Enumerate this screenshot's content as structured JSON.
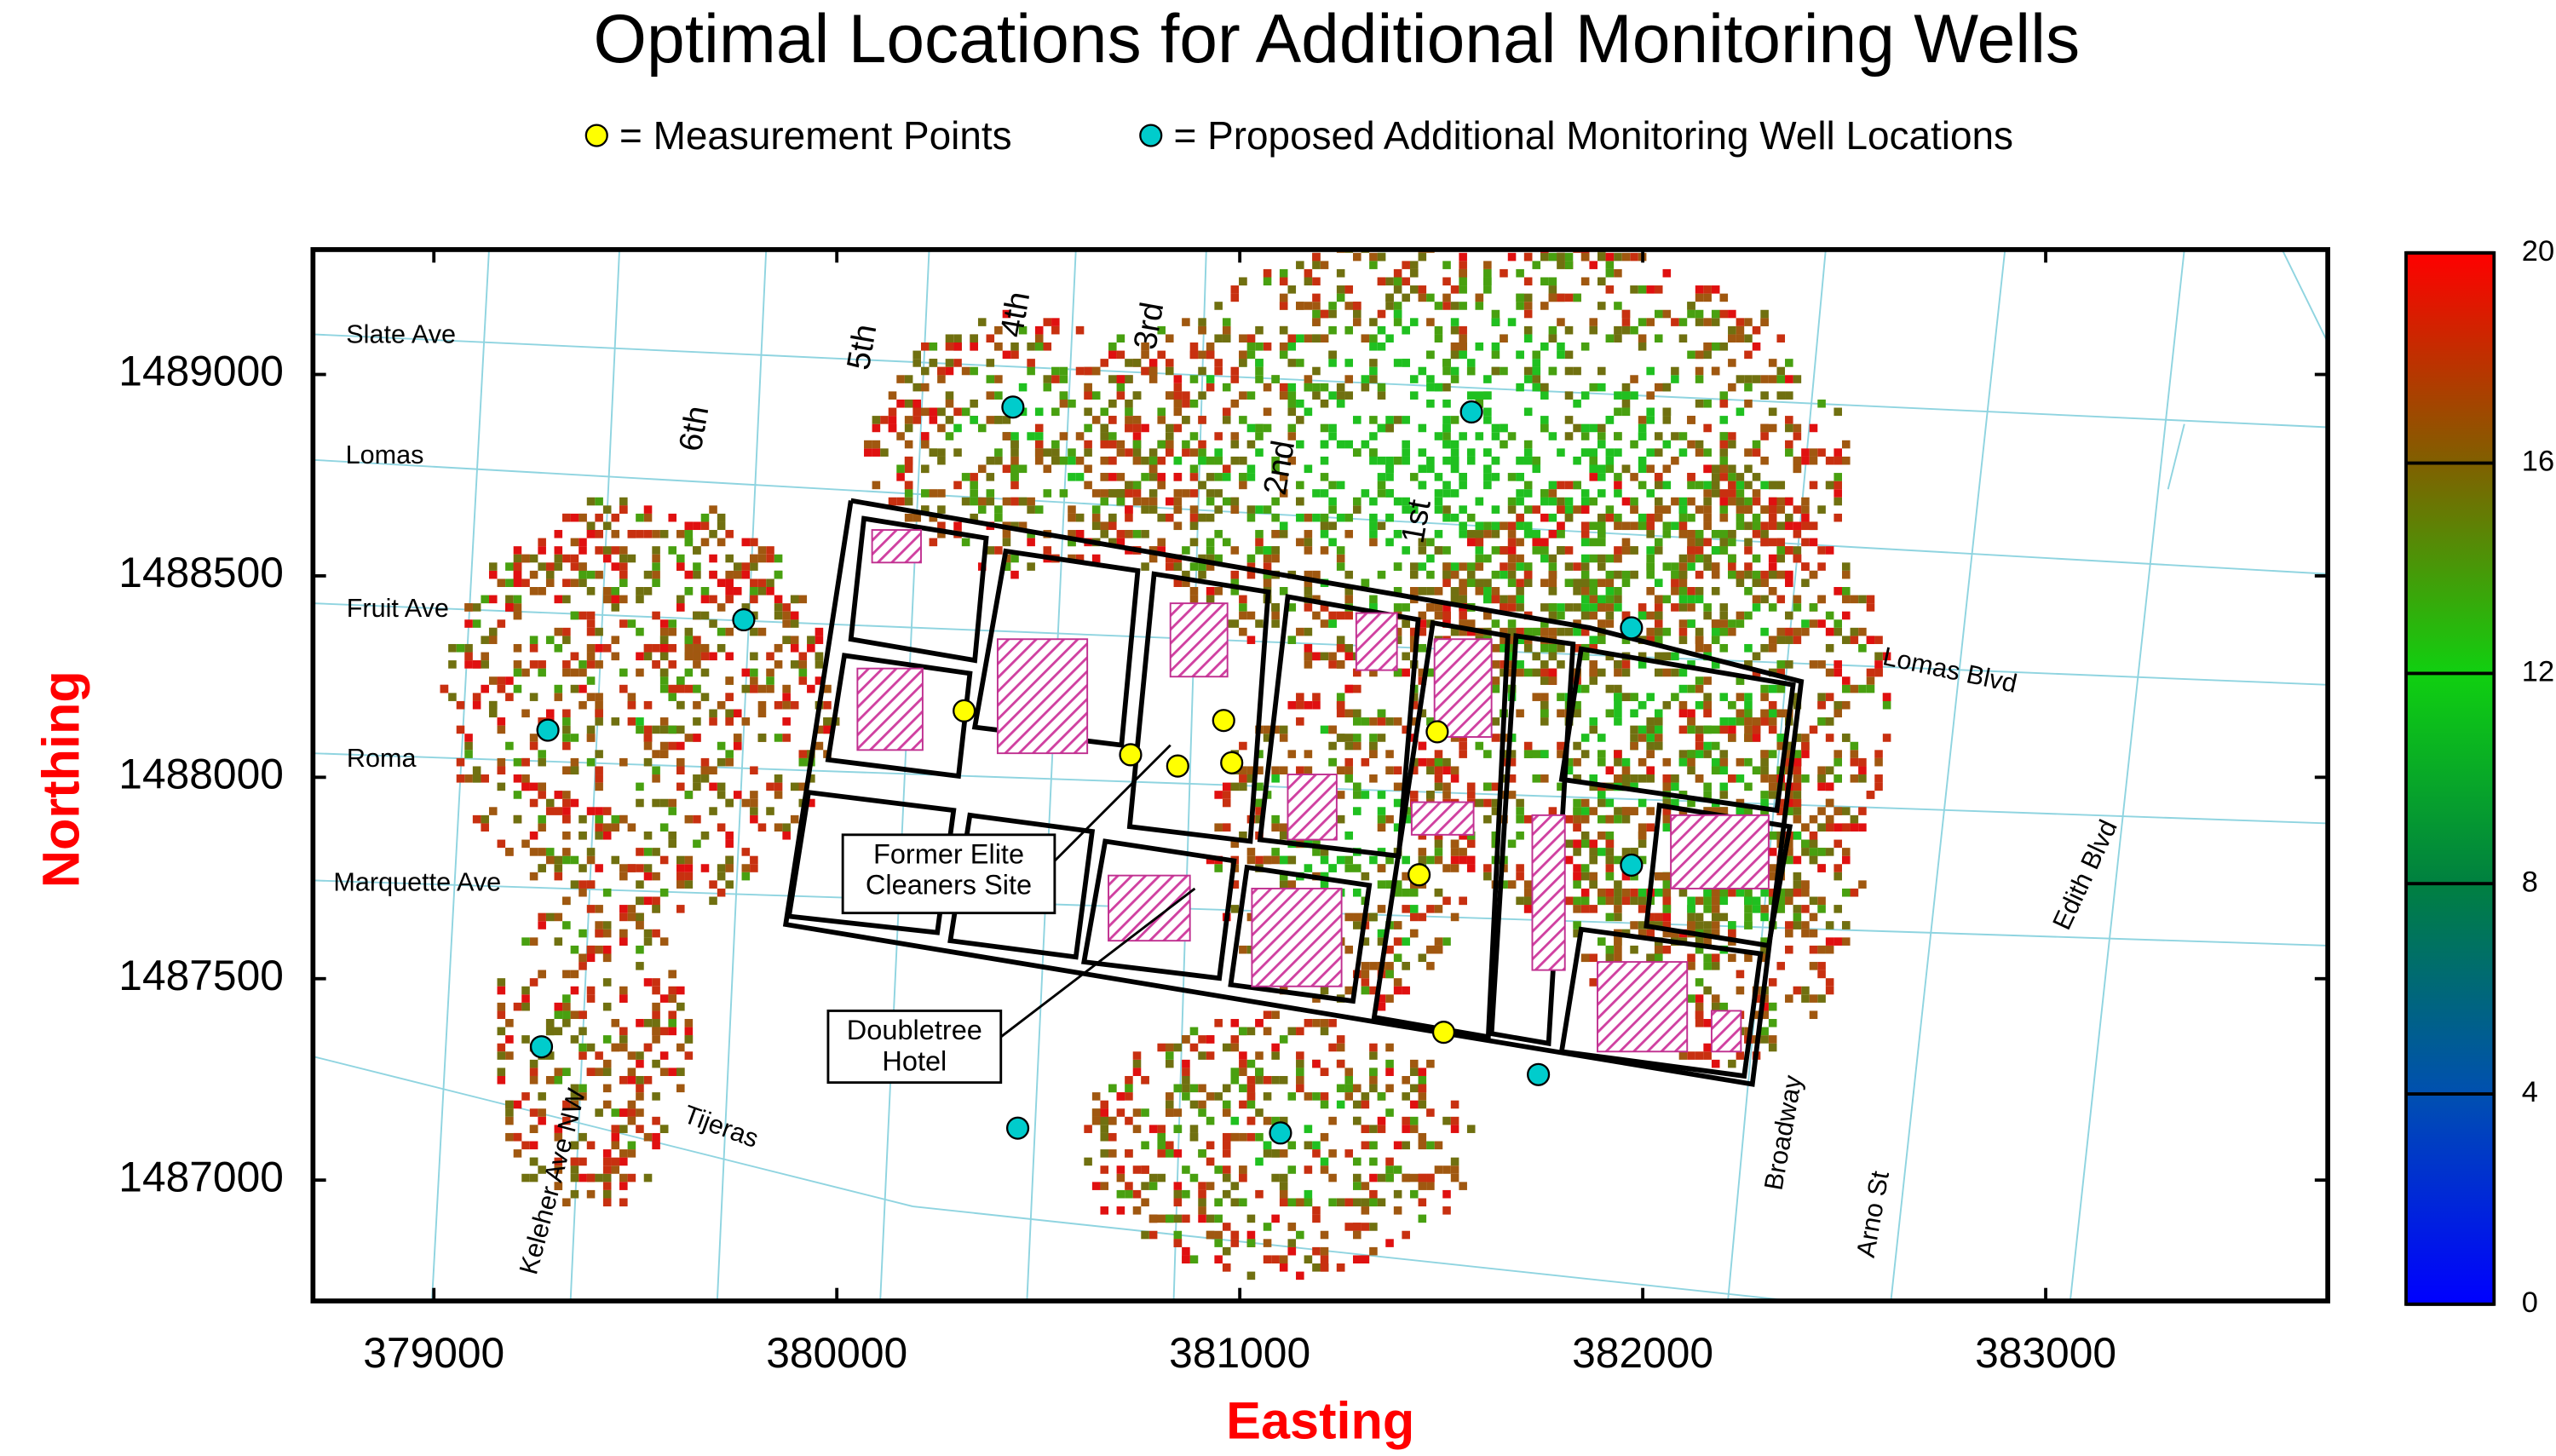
{
  "chart_data": {
    "type": "scatter",
    "title": "Optimal Locations for Additional Monitoring Wells",
    "x_label": "Easting",
    "y_label": "Northing",
    "xlim": [
      378700,
      383700
    ],
    "xticks": [
      379000,
      380000,
      381000,
      382000,
      383000
    ],
    "ylim": [
      1486700,
      1489310
    ],
    "yticks": [
      1487000,
      1487500,
      1488000,
      1488500,
      1489000
    ],
    "series": [
      {
        "name": "= Measurement Points",
        "color": "#ffff00",
        "x": [
          380316,
          380729,
          380846,
          380960,
          380980,
          381490,
          381445,
          381506
        ],
        "values": [
          1488165,
          1488056,
          1488028,
          1488141,
          1488036,
          1488113,
          1487758,
          1487367
        ]
      },
      {
        "name": "= Proposed Additional Monitoring Well Locations",
        "color": "#00cccc",
        "x": [
          380437,
          379769,
          379283,
          379267,
          380449,
          381101,
          381575,
          381972,
          381972,
          381741
        ],
        "values": [
          1488919,
          1488391,
          1488117,
          1487331,
          1487129,
          1487117,
          1488907,
          1488371,
          1487782,
          1487262
        ]
      }
    ],
    "colorbar": {
      "lim": [
        0,
        20
      ],
      "ticks": [
        0,
        4,
        8,
        12,
        16,
        20
      ],
      "colors": [
        "#0000ff",
        "#0050b0",
        "#008040",
        "#10d010",
        "#806000",
        "#ff0000"
      ]
    },
    "streets": [
      "Slate Ave",
      "Lomas",
      "Fruit Ave",
      "Roma",
      "Marquette Ave",
      "6th",
      "5th",
      "4th",
      "3rd",
      "2nd",
      "1st",
      "Lomas Blvd",
      "Edith Blvd",
      "Broadway",
      "Arno St",
      "Tijeras",
      "Keleher Ave NW"
    ],
    "annotations": [
      [
        "Former Elite",
        "Cleaners Site"
      ],
      [
        "Doubletree",
        "Hotel"
      ]
    ]
  }
}
